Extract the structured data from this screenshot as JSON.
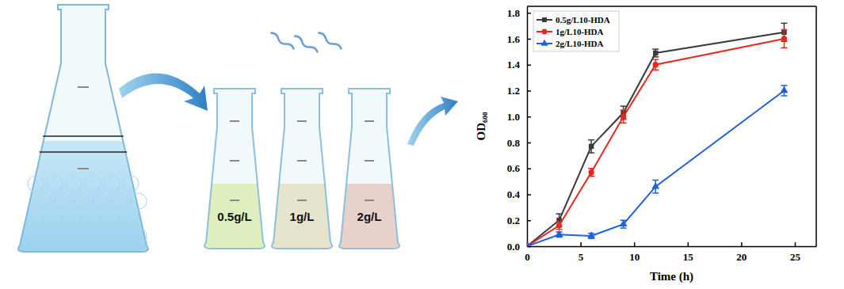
{
  "chart_data": {
    "type": "line",
    "x_label": "Time (h)",
    "y_label": "OD₆₀₀",
    "x": [
      0,
      3,
      6,
      9,
      12,
      24
    ],
    "series": [
      {
        "name": "0.5g/L10-HDA",
        "color": "#3a3a3a",
        "marker": "square",
        "values": [
          0,
          0.2,
          0.77,
          1.03,
          1.49,
          1.65
        ],
        "errors": [
          0,
          0.05,
          0.05,
          0.05,
          0.03,
          0.07
        ]
      },
      {
        "name": "1g/L10-HDA",
        "color": "#e8271d",
        "marker": "circle",
        "values": [
          0,
          0.16,
          0.57,
          1.0,
          1.4,
          1.6
        ],
        "errors": [
          0,
          0.03,
          0.03,
          0.05,
          0.04,
          0.07
        ]
      },
      {
        "name": "2g/L10-HDA",
        "color": "#1f5fe0",
        "marker": "triangle",
        "values": [
          0,
          0.09,
          0.08,
          0.17,
          0.46,
          1.2
        ],
        "errors": [
          0,
          0.02,
          0.02,
          0.03,
          0.05,
          0.04
        ]
      }
    ],
    "xlim": [
      0,
      27
    ],
    "xticks": [
      0,
      5,
      10,
      15,
      20,
      25
    ],
    "ylim": [
      0,
      1.85
    ],
    "yticks": [
      {
        "value": 0,
        "label": "0.0"
      },
      {
        "value": 0.2,
        "label": "0.2"
      },
      {
        "value": 0.4,
        "label": "0.4"
      },
      {
        "value": 0.6,
        "label": "0.6"
      },
      {
        "value": 0.8,
        "label": "0.8"
      },
      {
        "value": 1.0,
        "label": "1.0"
      },
      {
        "value": 1.2,
        "label": "1.2"
      },
      {
        "value": 1.4,
        "label": "1.4"
      },
      {
        "value": 1.6,
        "label": "1.6"
      },
      {
        "value": 1.8,
        "label": "1.8"
      }
    ],
    "grid": false,
    "legend": "upper left"
  },
  "illustration": {
    "flask_labels": [
      "0.5g/L",
      "1g/L",
      "2g/L"
    ]
  }
}
